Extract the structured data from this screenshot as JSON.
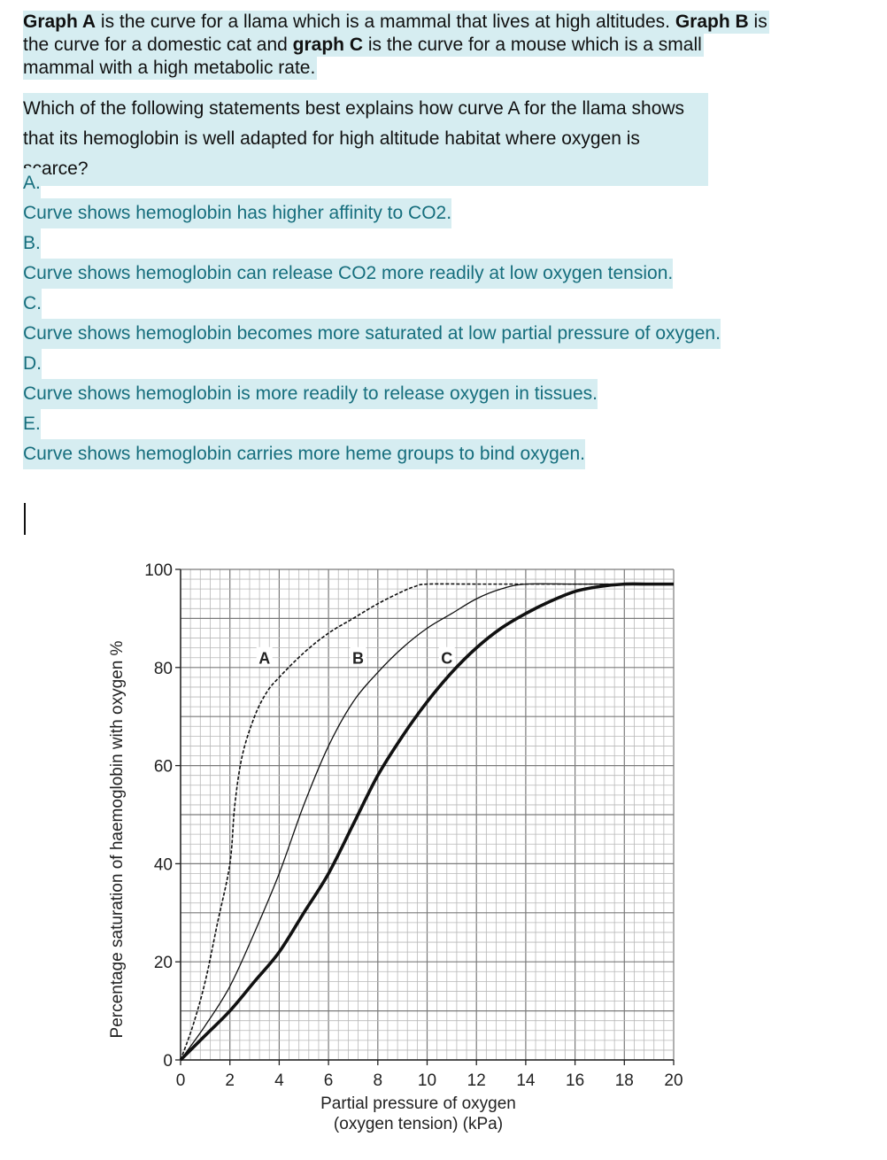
{
  "intro": {
    "line1": [
      "Graph A",
      " is the curve for a llama which is a mammal that lives at high altitudes. ",
      "Graph B",
      " is"
    ],
    "line2": [
      "the curve for a domestic cat and ",
      "graph C",
      " is the curve for a mouse  which is a small"
    ],
    "line3": "mammal with a high metabolic rate."
  },
  "question": {
    "text": "Which of the following statements best explains how curve A for the llama shows that its hemoglobin is well adapted for high altitude habitat where oxygen is scarce?"
  },
  "options": [
    {
      "letter": "A.",
      "text": "Curve shows hemoglobin has higher affinity to CO2."
    },
    {
      "letter": "B.",
      "text": "Curve shows hemoglobin can release CO2 more readily at low oxygen tension."
    },
    {
      "letter": "C.",
      "text": "Curve shows hemoglobin becomes more saturated at low partial pressure of oxygen."
    },
    {
      "letter": "D.",
      "text": "Curve shows hemoglobin is more readily to release oxygen in tissues."
    },
    {
      "letter": "E.",
      "text": "Curve shows hemoglobin carries more heme groups to bind oxygen."
    }
  ],
  "chart_data": {
    "type": "line",
    "xlabel_line1": "Partial pressure of oxygen",
    "xlabel_line2": "(oxygen tension) (kPa)",
    "ylabel": "Percentage saturation of haemoglobin with oxygen %",
    "xlim": [
      0,
      20
    ],
    "ylim": [
      0,
      100
    ],
    "xticks": [
      "0",
      "2",
      "4",
      "6",
      "8",
      "10",
      "12",
      "14",
      "16",
      "18",
      "20"
    ],
    "yticks": [
      "0",
      "20",
      "40",
      "60",
      "80",
      "100"
    ],
    "grid": true,
    "series": [
      {
        "name": "A",
        "style": "dashed",
        "x": [
          0,
          0.5,
          1,
          1.5,
          2,
          2.2,
          2.5,
          3,
          3.5,
          4,
          5,
          6,
          7,
          8,
          9,
          9.5,
          10,
          12,
          14,
          16,
          18,
          20
        ],
        "y": [
          0,
          7,
          16,
          28,
          40,
          52,
          62,
          70,
          75,
          78,
          83,
          87,
          90,
          93,
          95.5,
          96.5,
          97,
          97,
          97,
          97,
          97,
          97
        ]
      },
      {
        "name": "B",
        "style": "thin",
        "x": [
          0,
          1,
          2,
          3,
          4,
          5,
          6,
          7,
          8,
          9,
          10,
          11,
          12,
          13,
          14,
          16,
          18,
          20
        ],
        "y": [
          0,
          7,
          15,
          26,
          38,
          52,
          64,
          73,
          79,
          84,
          88,
          91,
          94,
          96,
          97,
          97,
          97,
          97
        ],
        "label_x": 7.2,
        "label_y": 82
      },
      {
        "name": "C",
        "style": "bold",
        "x": [
          0,
          1,
          2,
          3,
          4,
          5,
          6,
          7,
          8,
          9,
          10,
          11,
          12,
          13,
          14,
          15,
          16,
          17,
          18,
          19,
          20
        ],
        "y": [
          0,
          5,
          10,
          16,
          22,
          30,
          38,
          48,
          58,
          66,
          73,
          79,
          84,
          88,
          91,
          93.5,
          95.5,
          96.5,
          97,
          97,
          97
        ],
        "label_x": 10.8,
        "label_y": 82
      }
    ],
    "label_a": {
      "text": "A",
      "x": 3.4,
      "y": 82
    }
  }
}
